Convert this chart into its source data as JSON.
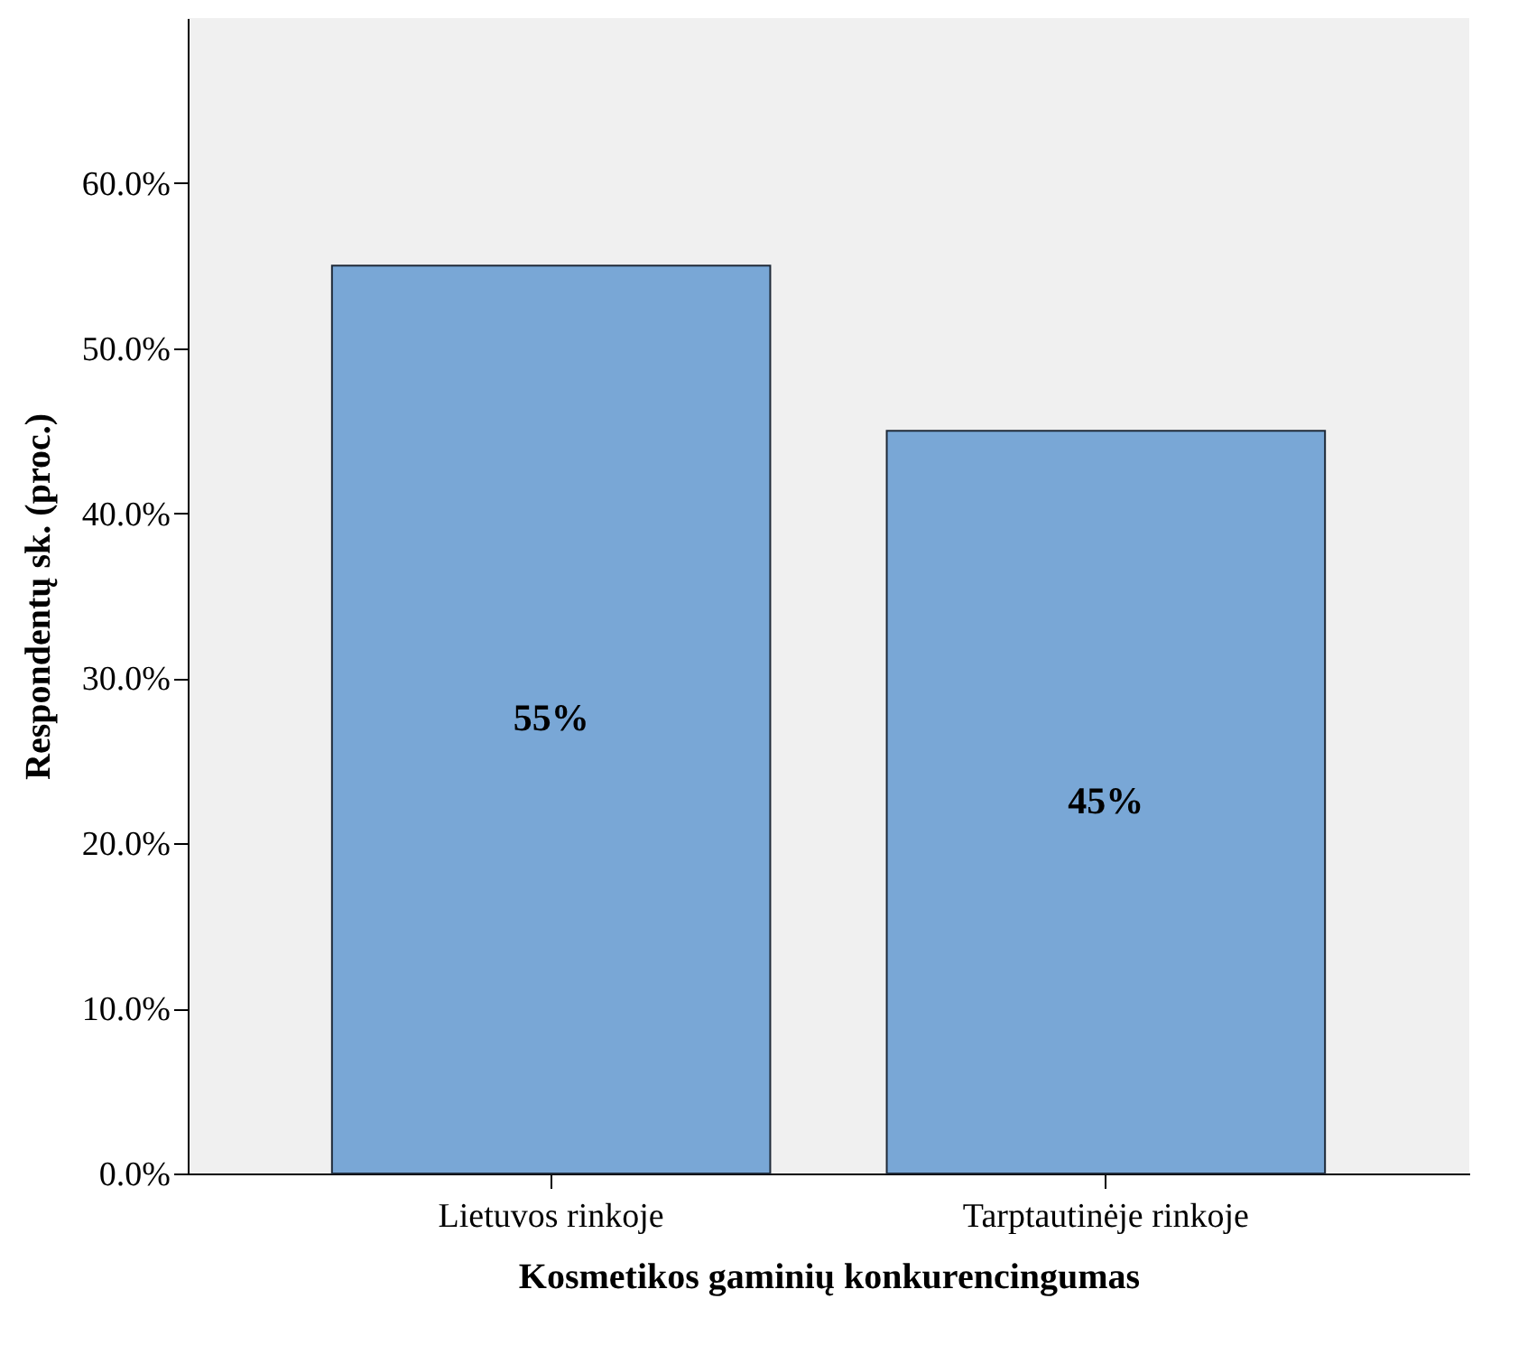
{
  "chart_data": {
    "type": "bar",
    "xlabel": "Kosmetikos gaminių konkurencingumas",
    "ylabel": "Respondentų sk. (proc.)",
    "categories": [
      "Lietuvos rinkoje",
      "Tarptautinėje rinkoje"
    ],
    "values": [
      55,
      45
    ],
    "value_labels": [
      "55%",
      "45%"
    ],
    "color": "#79a7d6",
    "ylim": [
      0,
      70
    ],
    "yticks": [
      {
        "value": 0,
        "label": "0.0%"
      },
      {
        "value": 10,
        "label": "10.0%"
      },
      {
        "value": 20,
        "label": "20.0%"
      },
      {
        "value": 30,
        "label": "30.0%"
      },
      {
        "value": 40,
        "label": "40.0%"
      },
      {
        "value": 50,
        "label": "50.0%"
      },
      {
        "value": 60,
        "label": "60.0%"
      }
    ],
    "grid": false
  }
}
